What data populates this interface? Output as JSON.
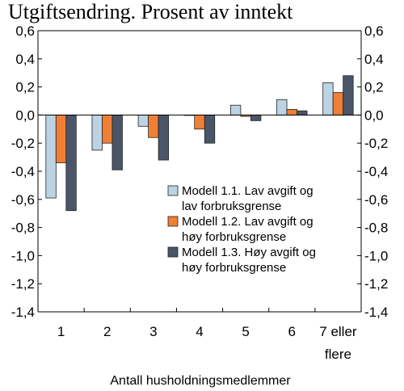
{
  "chart_data": {
    "type": "bar",
    "title": "Utgiftsendring. Prosent av inntekt",
    "xlabel": "Antall husholdningsmedlemmer",
    "ylabel": "",
    "ylim": [
      -1.4,
      0.6
    ],
    "yticks": [
      "0,6",
      "0,4",
      "0,2",
      "0,0",
      "-0,2",
      "-0,4",
      "-0,6",
      "-0,8",
      "-1,0",
      "-1,2",
      "-1,4"
    ],
    "categories": [
      [
        "1"
      ],
      [
        "2"
      ],
      [
        "3"
      ],
      [
        "4"
      ],
      [
        "5"
      ],
      [
        "6"
      ],
      [
        "7 eller",
        "flere"
      ]
    ],
    "series": [
      {
        "name": "Modell 1.1. Lav avgift og lav forbruksgrense",
        "legend_lines": [
          "Modell 1.1. Lav avgift og",
          "lav forbruksgrense"
        ],
        "color": "#bcd3e3",
        "values": [
          -0.59,
          -0.25,
          -0.08,
          0.0,
          0.07,
          0.11,
          0.23
        ]
      },
      {
        "name": "Modell 1.2. Lav avgift og høy forbruksgrense",
        "legend_lines": [
          "Modell 1.2. Lav avgift og",
          "høy forbruksgrense"
        ],
        "color": "#f07f35",
        "values": [
          -0.34,
          -0.2,
          -0.16,
          -0.1,
          -0.01,
          0.04,
          0.16
        ]
      },
      {
        "name": "Modell 1.3. Høy avgift og høy forbruksgrense",
        "legend_lines": [
          "Modell 1.3. Høy avgift og",
          "høy forbruksgrense"
        ],
        "color": "#4a5668",
        "values": [
          -0.68,
          -0.39,
          -0.32,
          -0.2,
          -0.04,
          0.03,
          0.28
        ]
      }
    ],
    "grid": false,
    "legend": "center-right"
  }
}
